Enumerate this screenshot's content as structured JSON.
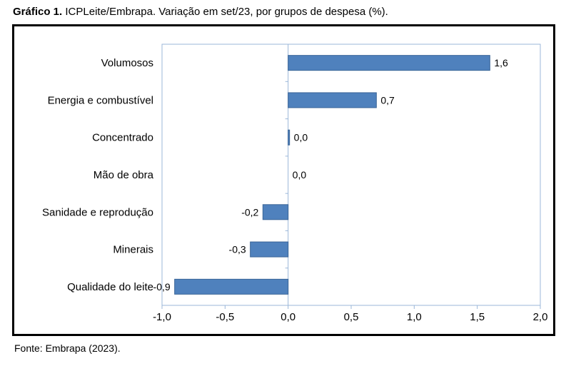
{
  "caption": {
    "label": "Gráfico 1.",
    "text": "ICPLeite/Embrapa. Variação em set/23, por grupos de despesa (%)."
  },
  "source": "Fonte: Embrapa (2023).",
  "colors": {
    "bar": "#4F81BD",
    "bar_stroke": "#3A6597",
    "axis": "#9BB7D9"
  },
  "chart_data": {
    "type": "bar",
    "orientation": "horizontal",
    "categories": [
      "Volumosos",
      "Energia e combustível",
      "Concentrado",
      "Mão de obra",
      "Sanidade e reprodução",
      "Minerais",
      "Qualidade do leite"
    ],
    "values": [
      1.6,
      0.7,
      0.0,
      0.0,
      -0.2,
      -0.3,
      -0.9
    ],
    "value_labels": [
      "1,6",
      "0,7",
      "0,0",
      "0,0",
      "-0,2",
      "-0,3",
      "-0,9"
    ],
    "xlim": [
      -1.0,
      2.0
    ],
    "xticks": [
      -1.0,
      -0.5,
      0.0,
      0.5,
      1.0,
      1.5,
      2.0
    ],
    "xtick_labels": [
      "-1,0",
      "-0,5",
      "0,0",
      "0,5",
      "1,0",
      "1,5",
      "2,0"
    ],
    "grid": false,
    "legend": "none"
  }
}
